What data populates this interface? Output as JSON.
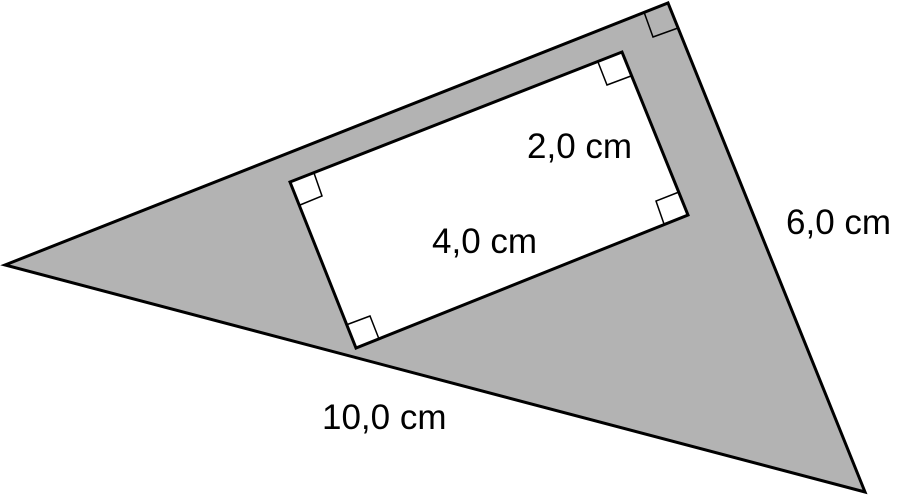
{
  "colors": {
    "triangle_fill": "#b3b3b3",
    "rectangle_fill": "#ffffff",
    "stroke": "#000000",
    "background": "#ffffff"
  },
  "labels": {
    "hypotenuse": "10,0 cm",
    "right_leg": "6,0 cm",
    "rect_short_side": "2,0 cm",
    "rect_long_side": "4,0 cm"
  }
}
